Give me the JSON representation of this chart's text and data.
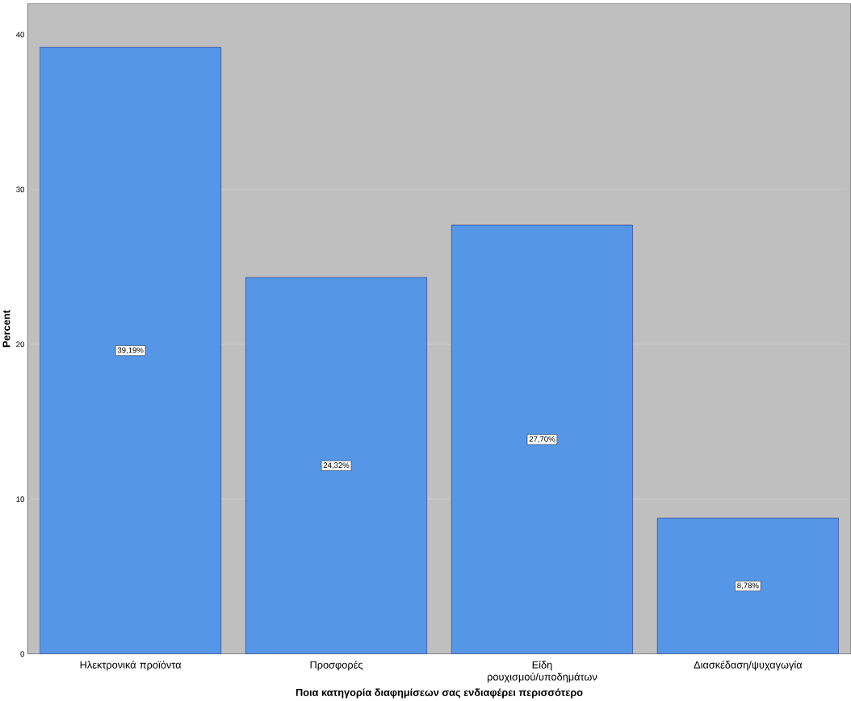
{
  "chart_data": {
    "type": "bar",
    "xlabel": "Ποια κατηγορία διαφημίσεων σας ενδιαφέρει περισσότερο",
    "ylabel": "Percent",
    "categories": [
      "Ηλεκτρονικά προϊόντα",
      "Προσφορές",
      "Είδη ρουχισμού/υποδημάτων",
      "Διασκέδαση/ψυχαγωγία"
    ],
    "values": [
      39.19,
      24.32,
      27.7,
      8.78
    ],
    "value_labels": [
      "39,19%",
      "24,32%",
      "27,70%",
      "8,78%"
    ],
    "color": "#5596e6",
    "ylim": [
      0,
      42
    ],
    "yticks": [
      0,
      10,
      20,
      30,
      40
    ],
    "grid": "y"
  }
}
